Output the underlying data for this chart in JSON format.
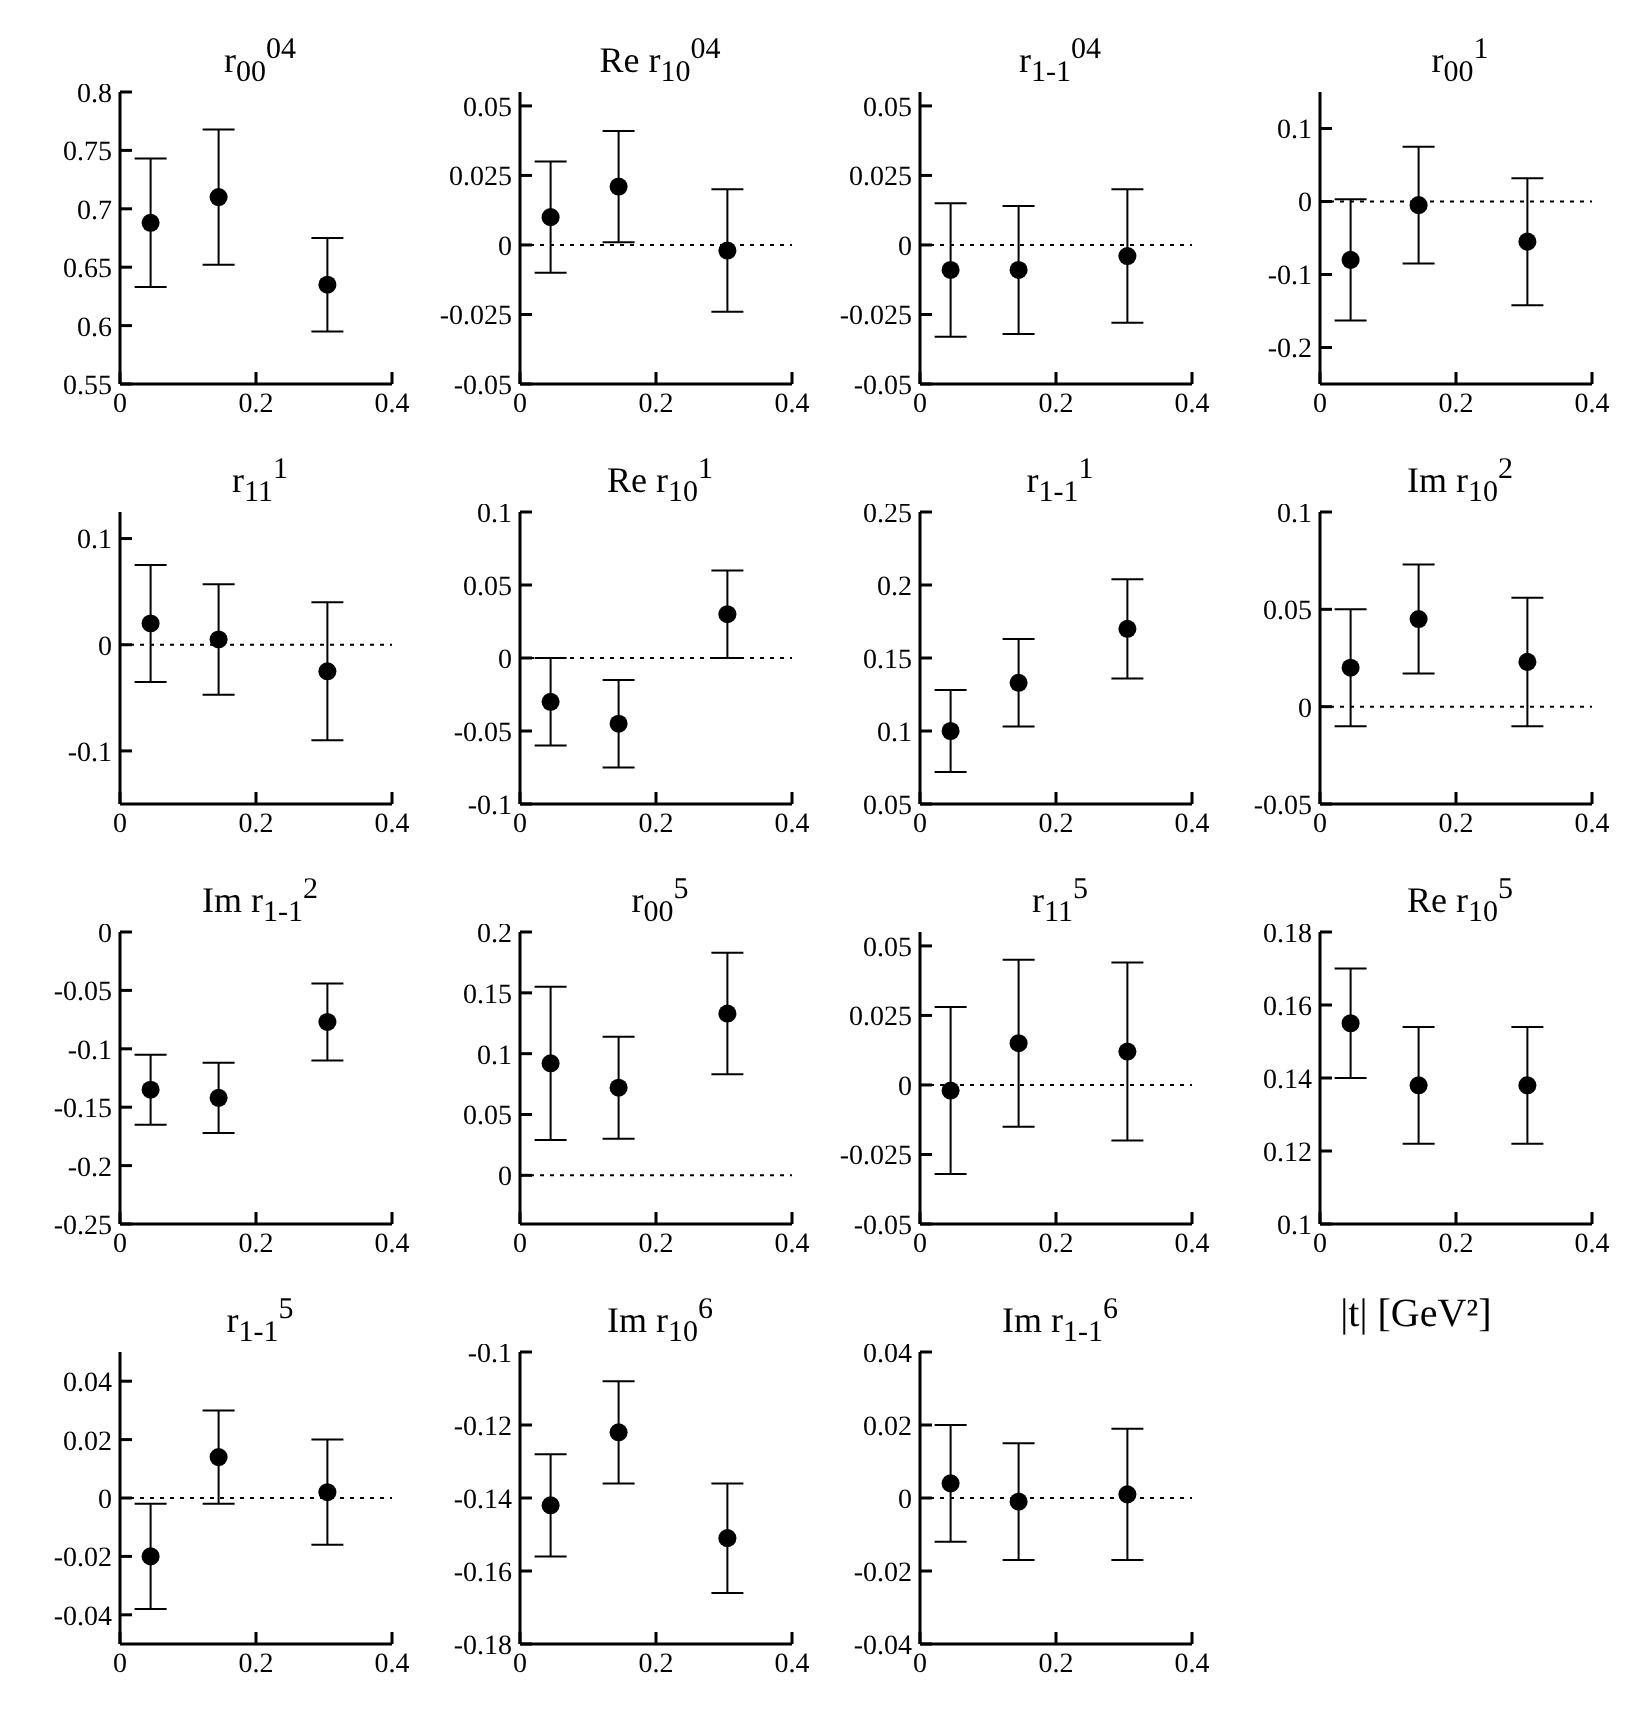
{
  "chart_data": [
    {
      "type": "scatter",
      "title": "r$_{00}$$^{04}$",
      "x": [
        0.045,
        0.145,
        0.305
      ],
      "values": [
        0.688,
        0.71,
        0.635
      ],
      "errors": [
        0.055,
        0.058,
        0.04
      ],
      "xlim": [
        0,
        0.4
      ],
      "xticks": [
        0,
        0.2,
        0.4
      ],
      "ylim": [
        0.55,
        0.8
      ],
      "yticks": [
        0.55,
        0.6,
        0.65,
        0.7,
        0.75,
        0.8
      ],
      "marker": "circle",
      "color": "#000000"
    },
    {
      "type": "scatter",
      "title": "Re r$_{10}$$^{04}$",
      "x": [
        0.045,
        0.145,
        0.305
      ],
      "values": [
        0.01,
        0.021,
        -0.002
      ],
      "errors": [
        0.02,
        0.02,
        0.022
      ],
      "xlim": [
        0,
        0.4
      ],
      "xticks": [
        0,
        0.2,
        0.4
      ],
      "ylim": [
        -0.05,
        0.055
      ],
      "yticks": [
        -0.05,
        -0.025,
        0,
        0.025,
        0.05
      ],
      "marker": "circle",
      "color": "#000000",
      "ref_lines": [
        {
          "axis": "y",
          "value": 0,
          "line_style": "dotted"
        }
      ]
    },
    {
      "type": "scatter",
      "title": "r$_{1-1}$$^{04}$",
      "x": [
        0.045,
        0.145,
        0.305
      ],
      "values": [
        -0.009,
        -0.009,
        -0.004
      ],
      "errors": [
        0.024,
        0.023,
        0.024
      ],
      "xlim": [
        0,
        0.4
      ],
      "xticks": [
        0,
        0.2,
        0.4
      ],
      "ylim": [
        -0.05,
        0.055
      ],
      "yticks": [
        -0.05,
        -0.025,
        0,
        0.025,
        0.05
      ],
      "marker": "circle",
      "color": "#000000",
      "ref_lines": [
        {
          "axis": "y",
          "value": 0,
          "line_style": "dotted"
        }
      ]
    },
    {
      "type": "scatter",
      "title": "r$_{00}$$^{1}$",
      "x": [
        0.045,
        0.145,
        0.305
      ],
      "values": [
        -0.08,
        -0.005,
        -0.055
      ],
      "errors": [
        0.083,
        0.08,
        0.087
      ],
      "xlim": [
        0,
        0.4
      ],
      "xticks": [
        0,
        0.2,
        0.4
      ],
      "ylim": [
        -0.25,
        0.15
      ],
      "yticks": [
        -0.2,
        -0.1,
        0,
        0.1
      ],
      "marker": "circle",
      "color": "#000000",
      "ref_lines": [
        {
          "axis": "y",
          "value": 0,
          "line_style": "dotted"
        }
      ]
    },
    {
      "type": "scatter",
      "title": "r$_{11}$$^{1}$",
      "x": [
        0.045,
        0.145,
        0.305
      ],
      "values": [
        0.02,
        0.005,
        -0.025
      ],
      "errors": [
        0.055,
        0.052,
        0.065
      ],
      "xlim": [
        0,
        0.4
      ],
      "xticks": [
        0,
        0.2,
        0.4
      ],
      "ylim": [
        -0.15,
        0.125
      ],
      "yticks": [
        -0.1,
        0,
        0.1
      ],
      "marker": "circle",
      "color": "#000000",
      "ref_lines": [
        {
          "axis": "y",
          "value": 0,
          "line_style": "dotted"
        }
      ]
    },
    {
      "type": "scatter",
      "title": "Re r$_{10}$$^{1}$",
      "x": [
        0.045,
        0.145,
        0.305
      ],
      "values": [
        -0.03,
        -0.045,
        0.03
      ],
      "errors": [
        0.03,
        0.03,
        0.03
      ],
      "xlim": [
        0,
        0.4
      ],
      "xticks": [
        0,
        0.2,
        0.4
      ],
      "ylim": [
        -0.1,
        0.1
      ],
      "yticks": [
        -0.1,
        -0.05,
        0,
        0.05,
        0.1
      ],
      "marker": "circle",
      "color": "#000000",
      "ref_lines": [
        {
          "axis": "y",
          "value": 0,
          "line_style": "dotted"
        }
      ]
    },
    {
      "type": "scatter",
      "title": "r$_{1-1}$$^{1}$",
      "x": [
        0.045,
        0.145,
        0.305
      ],
      "values": [
        0.1,
        0.133,
        0.17
      ],
      "errors": [
        0.028,
        0.03,
        0.034
      ],
      "xlim": [
        0,
        0.4
      ],
      "xticks": [
        0,
        0.2,
        0.4
      ],
      "ylim": [
        0.05,
        0.25
      ],
      "yticks": [
        0.05,
        0.1,
        0.15,
        0.2,
        0.25
      ],
      "marker": "circle",
      "color": "#000000"
    },
    {
      "type": "scatter",
      "title": "Im r$_{10}$$^{2}$",
      "x": [
        0.045,
        0.145,
        0.305
      ],
      "values": [
        0.02,
        0.045,
        0.023
      ],
      "errors": [
        0.03,
        0.028,
        0.033
      ],
      "xlim": [
        0,
        0.4
      ],
      "xticks": [
        0,
        0.2,
        0.4
      ],
      "ylim": [
        -0.05,
        0.1
      ],
      "yticks": [
        -0.05,
        0,
        0.05,
        0.1
      ],
      "marker": "circle",
      "color": "#000000",
      "ref_lines": [
        {
          "axis": "y",
          "value": 0,
          "line_style": "dotted"
        }
      ]
    },
    {
      "type": "scatter",
      "title": "Im r$_{1-1}$$^{2}$",
      "x": [
        0.045,
        0.145,
        0.305
      ],
      "values": [
        -0.135,
        -0.142,
        -0.077
      ],
      "errors": [
        0.03,
        0.03,
        0.033
      ],
      "xlim": [
        0,
        0.4
      ],
      "xticks": [
        0,
        0.2,
        0.4
      ],
      "ylim": [
        -0.25,
        0
      ],
      "yticks": [
        -0.25,
        -0.2,
        -0.15,
        -0.1,
        -0.05,
        0
      ],
      "marker": "circle",
      "color": "#000000"
    },
    {
      "type": "scatter",
      "title": "r$_{00}$$^{5}$",
      "x": [
        0.045,
        0.145,
        0.305
      ],
      "values": [
        0.092,
        0.072,
        0.133
      ],
      "errors": [
        0.063,
        0.042,
        0.05
      ],
      "xlim": [
        0,
        0.4
      ],
      "xticks": [
        0,
        0.2,
        0.4
      ],
      "ylim": [
        -0.04,
        0.2
      ],
      "yticks": [
        0,
        0.05,
        0.1,
        0.15,
        0.2
      ],
      "marker": "circle",
      "color": "#000000",
      "ref_lines": [
        {
          "axis": "y",
          "value": 0,
          "line_style": "dotted"
        }
      ]
    },
    {
      "type": "scatter",
      "title": "r$_{11}$$^{5}$",
      "x": [
        0.045,
        0.145,
        0.305
      ],
      "values": [
        -0.002,
        0.015,
        0.012
      ],
      "errors": [
        0.03,
        0.03,
        0.032
      ],
      "xlim": [
        0,
        0.4
      ],
      "xticks": [
        0,
        0.2,
        0.4
      ],
      "ylim": [
        -0.05,
        0.055
      ],
      "yticks": [
        -0.05,
        -0.025,
        0,
        0.025,
        0.05
      ],
      "marker": "circle",
      "color": "#000000",
      "ref_lines": [
        {
          "axis": "y",
          "value": 0,
          "line_style": "dotted"
        }
      ]
    },
    {
      "type": "scatter",
      "title": "Re r$_{10}$$^{5}$",
      "x": [
        0.045,
        0.145,
        0.305
      ],
      "values": [
        0.155,
        0.138,
        0.138
      ],
      "errors": [
        0.015,
        0.016,
        0.016
      ],
      "xlim": [
        0,
        0.4
      ],
      "xticks": [
        0,
        0.2,
        0.4
      ],
      "ylim": [
        0.1,
        0.18
      ],
      "yticks": [
        0.1,
        0.12,
        0.14,
        0.16,
        0.18
      ],
      "marker": "circle",
      "color": "#000000"
    },
    {
      "type": "scatter",
      "title": "r$_{1-1}$$^{5}$",
      "x": [
        0.045,
        0.145,
        0.305
      ],
      "values": [
        -0.02,
        0.014,
        0.002
      ],
      "errors": [
        0.018,
        0.016,
        0.018
      ],
      "xlim": [
        0,
        0.4
      ],
      "xticks": [
        0,
        0.2,
        0.4
      ],
      "ylim": [
        -0.05,
        0.05
      ],
      "yticks": [
        -0.04,
        -0.02,
        0,
        0.02,
        0.04
      ],
      "marker": "circle",
      "color": "#000000",
      "ref_lines": [
        {
          "axis": "y",
          "value": 0,
          "line_style": "dotted"
        }
      ]
    },
    {
      "type": "scatter",
      "title": "Im r$_{10}$$^{6}$",
      "x": [
        0.045,
        0.145,
        0.305
      ],
      "values": [
        -0.142,
        -0.122,
        -0.151
      ],
      "errors": [
        0.014,
        0.014,
        0.015
      ],
      "xlim": [
        0,
        0.4
      ],
      "xticks": [
        0,
        0.2,
        0.4
      ],
      "ylim": [
        -0.18,
        -0.1
      ],
      "yticks": [
        -0.18,
        -0.16,
        -0.14,
        -0.12,
        -0.1
      ],
      "marker": "circle",
      "color": "#000000"
    },
    {
      "type": "scatter",
      "title": "Im r$_{1-1}$$^{6}$",
      "xlabel": "|t| [GeV²]",
      "x": [
        0.045,
        0.145,
        0.305
      ],
      "values": [
        0.004,
        -0.001,
        0.001
      ],
      "errors": [
        0.016,
        0.016,
        0.018
      ],
      "xlim": [
        0,
        0.4
      ],
      "xticks": [
        0,
        0.2,
        0.4
      ],
      "ylim": [
        -0.04,
        0.04
      ],
      "yticks": [
        -0.04,
        -0.02,
        0,
        0.02,
        0.04
      ],
      "marker": "circle",
      "color": "#000000",
      "ref_lines": [
        {
          "axis": "y",
          "value": 0,
          "line_style": "dotted"
        }
      ]
    }
  ]
}
